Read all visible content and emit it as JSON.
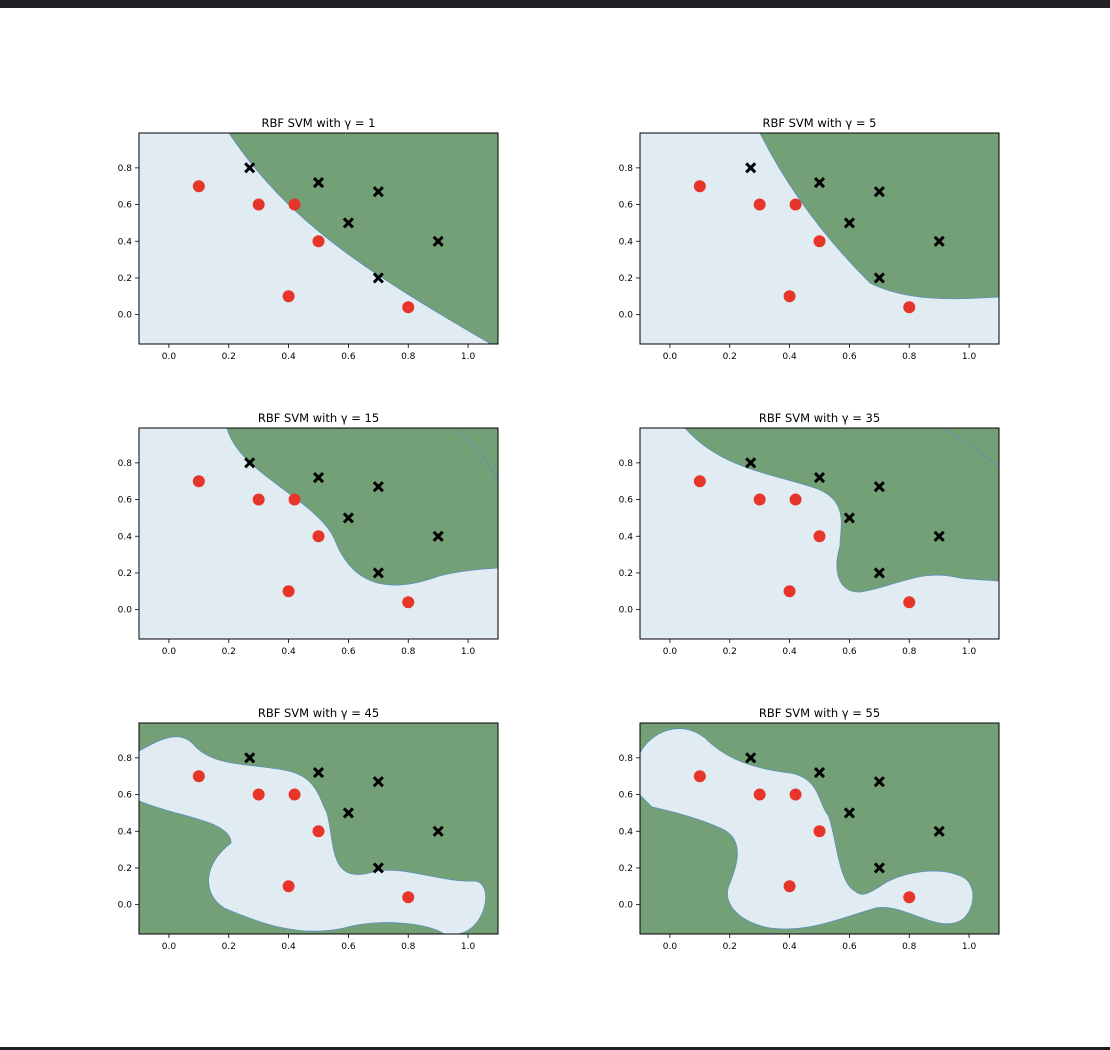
{
  "colors": {
    "class_a_region": "#e1ebf2",
    "class_b_region": "#74a077",
    "class_a_marker": "#e8352a",
    "class_b_marker": "#000000",
    "window_bar": "#202124"
  },
  "chart_data": [
    {
      "type": "scatter",
      "title": "RBF SVM with γ = 1",
      "xlim": [
        -0.1,
        1.1
      ],
      "ylim": [
        -0.16,
        0.99
      ],
      "xticks": [
        "0.0",
        "0.2",
        "0.4",
        "0.6",
        "0.8",
        "1.0"
      ],
      "yticks": [
        "0.0",
        "0.2",
        "0.4",
        "0.6",
        "0.8"
      ],
      "grid": false,
      "series": [
        {
          "marker": "circle",
          "x": [
            0.1,
            0.3,
            0.42,
            0.5,
            0.4,
            0.8
          ],
          "y": [
            0.7,
            0.6,
            0.6,
            0.4,
            0.1,
            0.04
          ]
        },
        {
          "marker": "cross",
          "x": [
            0.27,
            0.5,
            0.7,
            0.6,
            0.9,
            0.7
          ],
          "y": [
            0.8,
            0.72,
            0.67,
            0.5,
            0.4,
            0.2
          ]
        }
      ]
    },
    {
      "type": "scatter",
      "title": "RBF SVM with γ = 5",
      "xlim": [
        -0.1,
        1.1
      ],
      "ylim": [
        -0.16,
        0.99
      ],
      "xticks": [
        "0.0",
        "0.2",
        "0.4",
        "0.6",
        "0.8",
        "1.0"
      ],
      "yticks": [
        "0.0",
        "0.2",
        "0.4",
        "0.6",
        "0.8"
      ],
      "grid": false,
      "series": [
        {
          "marker": "circle",
          "x": [
            0.1,
            0.3,
            0.42,
            0.5,
            0.4,
            0.8
          ],
          "y": [
            0.7,
            0.6,
            0.6,
            0.4,
            0.1,
            0.04
          ]
        },
        {
          "marker": "cross",
          "x": [
            0.27,
            0.5,
            0.7,
            0.6,
            0.9,
            0.7
          ],
          "y": [
            0.8,
            0.72,
            0.67,
            0.5,
            0.4,
            0.2
          ]
        }
      ]
    },
    {
      "type": "scatter",
      "title": "RBF SVM with γ = 15",
      "xlim": [
        -0.1,
        1.1
      ],
      "ylim": [
        -0.16,
        0.99
      ],
      "xticks": [
        "0.0",
        "0.2",
        "0.4",
        "0.6",
        "0.8",
        "1.0"
      ],
      "yticks": [
        "0.0",
        "0.2",
        "0.4",
        "0.6",
        "0.8"
      ],
      "grid": false,
      "series": [
        {
          "marker": "circle",
          "x": [
            0.1,
            0.3,
            0.42,
            0.5,
            0.4,
            0.8
          ],
          "y": [
            0.7,
            0.6,
            0.6,
            0.4,
            0.1,
            0.04
          ]
        },
        {
          "marker": "cross",
          "x": [
            0.27,
            0.5,
            0.7,
            0.6,
            0.9,
            0.7
          ],
          "y": [
            0.8,
            0.72,
            0.67,
            0.5,
            0.4,
            0.2
          ]
        }
      ]
    },
    {
      "type": "scatter",
      "title": "RBF SVM with γ = 35",
      "xlim": [
        -0.1,
        1.1
      ],
      "ylim": [
        -0.16,
        0.99
      ],
      "xticks": [
        "0.0",
        "0.2",
        "0.4",
        "0.6",
        "0.8",
        "1.0"
      ],
      "yticks": [
        "0.0",
        "0.2",
        "0.4",
        "0.6",
        "0.8"
      ],
      "grid": false,
      "series": [
        {
          "marker": "circle",
          "x": [
            0.1,
            0.3,
            0.42,
            0.5,
            0.4,
            0.8
          ],
          "y": [
            0.7,
            0.6,
            0.6,
            0.4,
            0.1,
            0.04
          ]
        },
        {
          "marker": "cross",
          "x": [
            0.27,
            0.5,
            0.7,
            0.6,
            0.9,
            0.7
          ],
          "y": [
            0.8,
            0.72,
            0.67,
            0.5,
            0.4,
            0.2
          ]
        }
      ]
    },
    {
      "type": "scatter",
      "title": "RBF SVM with γ = 45",
      "xlim": [
        -0.1,
        1.1
      ],
      "ylim": [
        -0.16,
        0.99
      ],
      "xticks": [
        "0.0",
        "0.2",
        "0.4",
        "0.6",
        "0.8",
        "1.0"
      ],
      "yticks": [
        "0.0",
        "0.2",
        "0.4",
        "0.6",
        "0.8"
      ],
      "grid": false,
      "series": [
        {
          "marker": "circle",
          "x": [
            0.1,
            0.3,
            0.42,
            0.5,
            0.4,
            0.8
          ],
          "y": [
            0.7,
            0.6,
            0.6,
            0.4,
            0.1,
            0.04
          ]
        },
        {
          "marker": "cross",
          "x": [
            0.27,
            0.5,
            0.7,
            0.6,
            0.9,
            0.7
          ],
          "y": [
            0.8,
            0.72,
            0.67,
            0.5,
            0.4,
            0.2
          ]
        }
      ]
    },
    {
      "type": "scatter",
      "title": "RBF SVM with γ = 55",
      "xlim": [
        -0.1,
        1.1
      ],
      "ylim": [
        -0.16,
        0.99
      ],
      "xticks": [
        "0.0",
        "0.2",
        "0.4",
        "0.6",
        "0.8",
        "1.0"
      ],
      "yticks": [
        "0.0",
        "0.2",
        "0.4",
        "0.6",
        "0.8"
      ],
      "grid": false,
      "series": [
        {
          "marker": "circle",
          "x": [
            0.1,
            0.3,
            0.42,
            0.5,
            0.4,
            0.8
          ],
          "y": [
            0.7,
            0.6,
            0.6,
            0.4,
            0.1,
            0.04
          ]
        },
        {
          "marker": "cross",
          "x": [
            0.27,
            0.5,
            0.7,
            0.6,
            0.9,
            0.7
          ],
          "y": [
            0.8,
            0.72,
            0.67,
            0.5,
            0.4,
            0.2
          ]
        }
      ]
    }
  ]
}
